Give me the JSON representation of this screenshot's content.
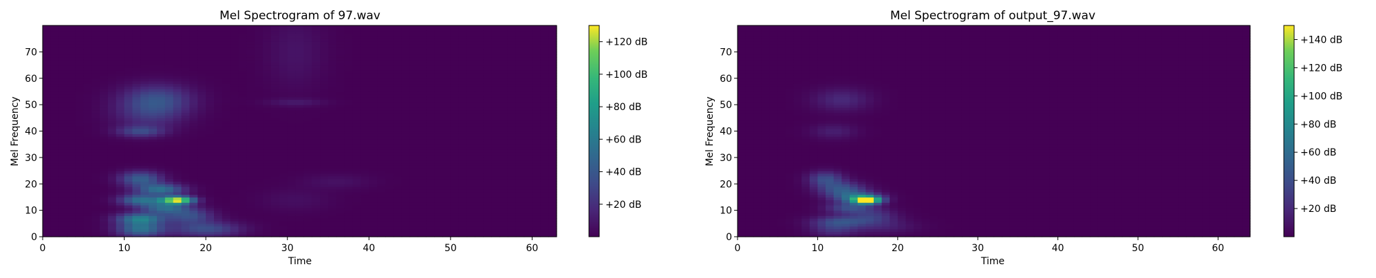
{
  "chart_data": [
    {
      "type": "heatmap",
      "title": "Mel Spectrogram of 97.wav",
      "xlabel": "Time",
      "ylabel": "Mel Frequency",
      "xlim": [
        0,
        63
      ],
      "ylim": [
        0,
        80
      ],
      "x_ticks": [
        0,
        10,
        20,
        30,
        40,
        50,
        60
      ],
      "y_ticks": [
        0,
        10,
        20,
        30,
        40,
        50,
        60,
        70
      ],
      "colormap": "viridis",
      "colorbar": {
        "range": [
          0,
          130
        ],
        "ticks": [
          20,
          40,
          60,
          80,
          100,
          120
        ],
        "tick_labels": [
          "+20 dB",
          "+40 dB",
          "+60 dB",
          "+80 dB",
          "+100 dB",
          "+120 dB"
        ]
      },
      "blobs": [
        {
          "t": 12,
          "dt": 2,
          "f": 3,
          "df": 2,
          "level": 55
        },
        {
          "t": 12,
          "dt": 2,
          "f": 7,
          "df": 1.5,
          "level": 60
        },
        {
          "t": 12,
          "dt": 1.8,
          "f": 14,
          "df": 1.5,
          "level": 55
        },
        {
          "t": 12,
          "dt": 1.8,
          "f": 22,
          "df": 2,
          "level": 45
        },
        {
          "t": 14.5,
          "dt": 2,
          "f": 18,
          "df": 1.5,
          "level": 55
        },
        {
          "t": 16.5,
          "dt": 1.4,
          "f": 14,
          "df": 1,
          "level": 130
        },
        {
          "t": 15,
          "dt": 2,
          "f": 11,
          "df": 1.5,
          "level": 50
        },
        {
          "t": 18,
          "dt": 2,
          "f": 8,
          "df": 2,
          "level": 35
        },
        {
          "t": 20,
          "dt": 3,
          "f": 3,
          "df": 2,
          "level": 35
        },
        {
          "t": 14,
          "dt": 3,
          "f": 52,
          "df": 4,
          "level": 35
        },
        {
          "t": 12,
          "dt": 2,
          "f": 40,
          "df": 1.5,
          "level": 30
        },
        {
          "t": 13,
          "dt": 3,
          "f": 46,
          "df": 4,
          "level": 18
        },
        {
          "t": 31,
          "dt": 2.5,
          "f": 70,
          "df": 10,
          "level": 8
        },
        {
          "t": 31,
          "dt": 2.5,
          "f": 51,
          "df": 1,
          "level": 10
        },
        {
          "t": 36,
          "dt": 3,
          "f": 21,
          "df": 2,
          "level": 7
        },
        {
          "t": 31,
          "dt": 3,
          "f": 14,
          "df": 3,
          "level": 6
        }
      ]
    },
    {
      "type": "heatmap",
      "title": "Mel Spectrogram of output_97.wav",
      "xlabel": "Time",
      "ylabel": "Mel Frequency",
      "xlim": [
        0,
        64
      ],
      "ylim": [
        0,
        80
      ],
      "x_ticks": [
        0,
        10,
        20,
        30,
        40,
        50,
        60
      ],
      "y_ticks": [
        0,
        10,
        20,
        30,
        40,
        50,
        60,
        70
      ],
      "colormap": "viridis",
      "colorbar": {
        "range": [
          0,
          150
        ],
        "ticks": [
          20,
          40,
          60,
          80,
          100,
          120,
          140
        ],
        "tick_labels": [
          "+20 dB",
          "+40 dB",
          "+60 dB",
          "+80 dB",
          "+100 dB",
          "+120 dB",
          "+140 dB"
        ]
      },
      "blobs": [
        {
          "t": 11,
          "dt": 1.5,
          "f": 22,
          "df": 2,
          "level": 40
        },
        {
          "t": 13,
          "dt": 2,
          "f": 18,
          "df": 2,
          "level": 45
        },
        {
          "t": 15,
          "dt": 2,
          "f": 15,
          "df": 1.5,
          "level": 55
        },
        {
          "t": 16.2,
          "dt": 1.2,
          "f": 14,
          "df": 1,
          "level": 150
        },
        {
          "t": 14,
          "dt": 2,
          "f": 11,
          "df": 1.5,
          "level": 40
        },
        {
          "t": 13,
          "dt": 2.5,
          "f": 6,
          "df": 1.5,
          "level": 35
        },
        {
          "t": 17,
          "dt": 2,
          "f": 8,
          "df": 2,
          "level": 25
        },
        {
          "t": 12,
          "dt": 2,
          "f": 3,
          "df": 2,
          "level": 25
        },
        {
          "t": 13,
          "dt": 2.5,
          "f": 52,
          "df": 3,
          "level": 20
        },
        {
          "t": 12,
          "dt": 2,
          "f": 40,
          "df": 2,
          "level": 15
        },
        {
          "t": 18,
          "dt": 3,
          "f": 4,
          "df": 2,
          "level": 15
        }
      ]
    }
  ]
}
